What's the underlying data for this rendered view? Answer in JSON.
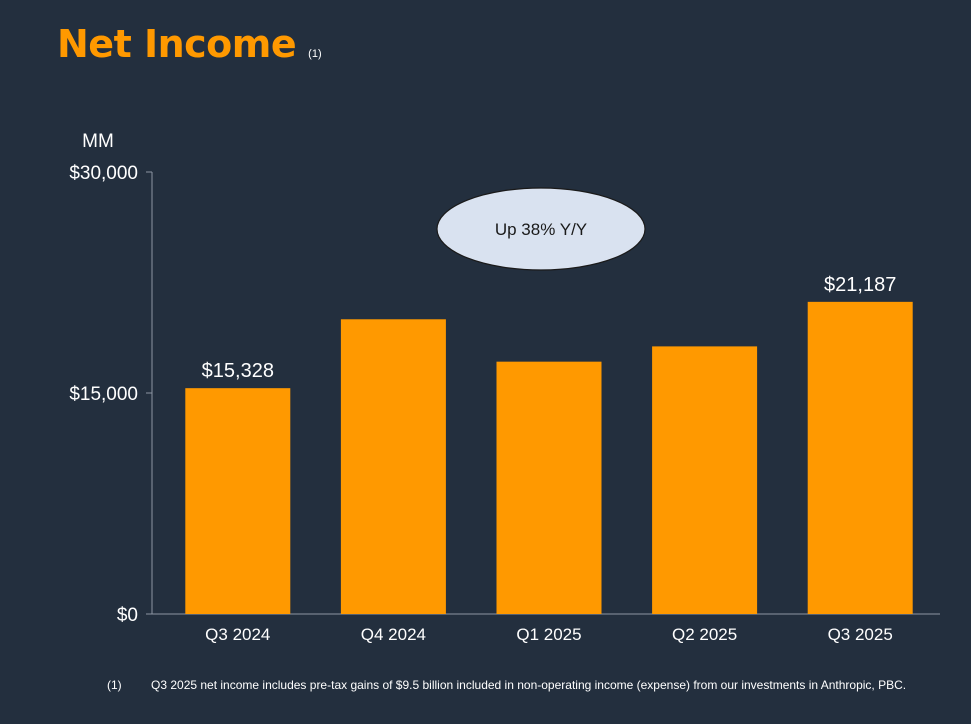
{
  "title": "Net Income",
  "title_note": "(1)",
  "callout": "Up 38% Y/Y",
  "footnote": {
    "marker": "(1)",
    "text": "Q3 2025 net income includes pre-tax gains of $9.5 billion included in non-operating income (expense) from our investments in Anthropic, PBC."
  },
  "colors": {
    "background": "#232f3e",
    "bar": "#ff9900",
    "title": "#ff9900",
    "callout_fill": "#d9e2f0",
    "axis": "#8c96a3"
  },
  "chart_data": {
    "type": "bar",
    "ylabel": "MM",
    "categories": [
      "Q3 2024",
      "Q4 2024",
      "Q1 2025",
      "Q2 2025",
      "Q3 2025"
    ],
    "values": [
      15328,
      20004,
      17127,
      18164,
      21187
    ],
    "data_labels": [
      "$15,328",
      "",
      "",
      "",
      "$21,187"
    ],
    "ylim": [
      0,
      30000
    ],
    "yticks": [
      {
        "value": 0,
        "label": "$0"
      },
      {
        "value": 15000,
        "label": "$15,000"
      },
      {
        "value": 30000,
        "label": "$30,000"
      }
    ],
    "grid": false,
    "legend": "none"
  }
}
